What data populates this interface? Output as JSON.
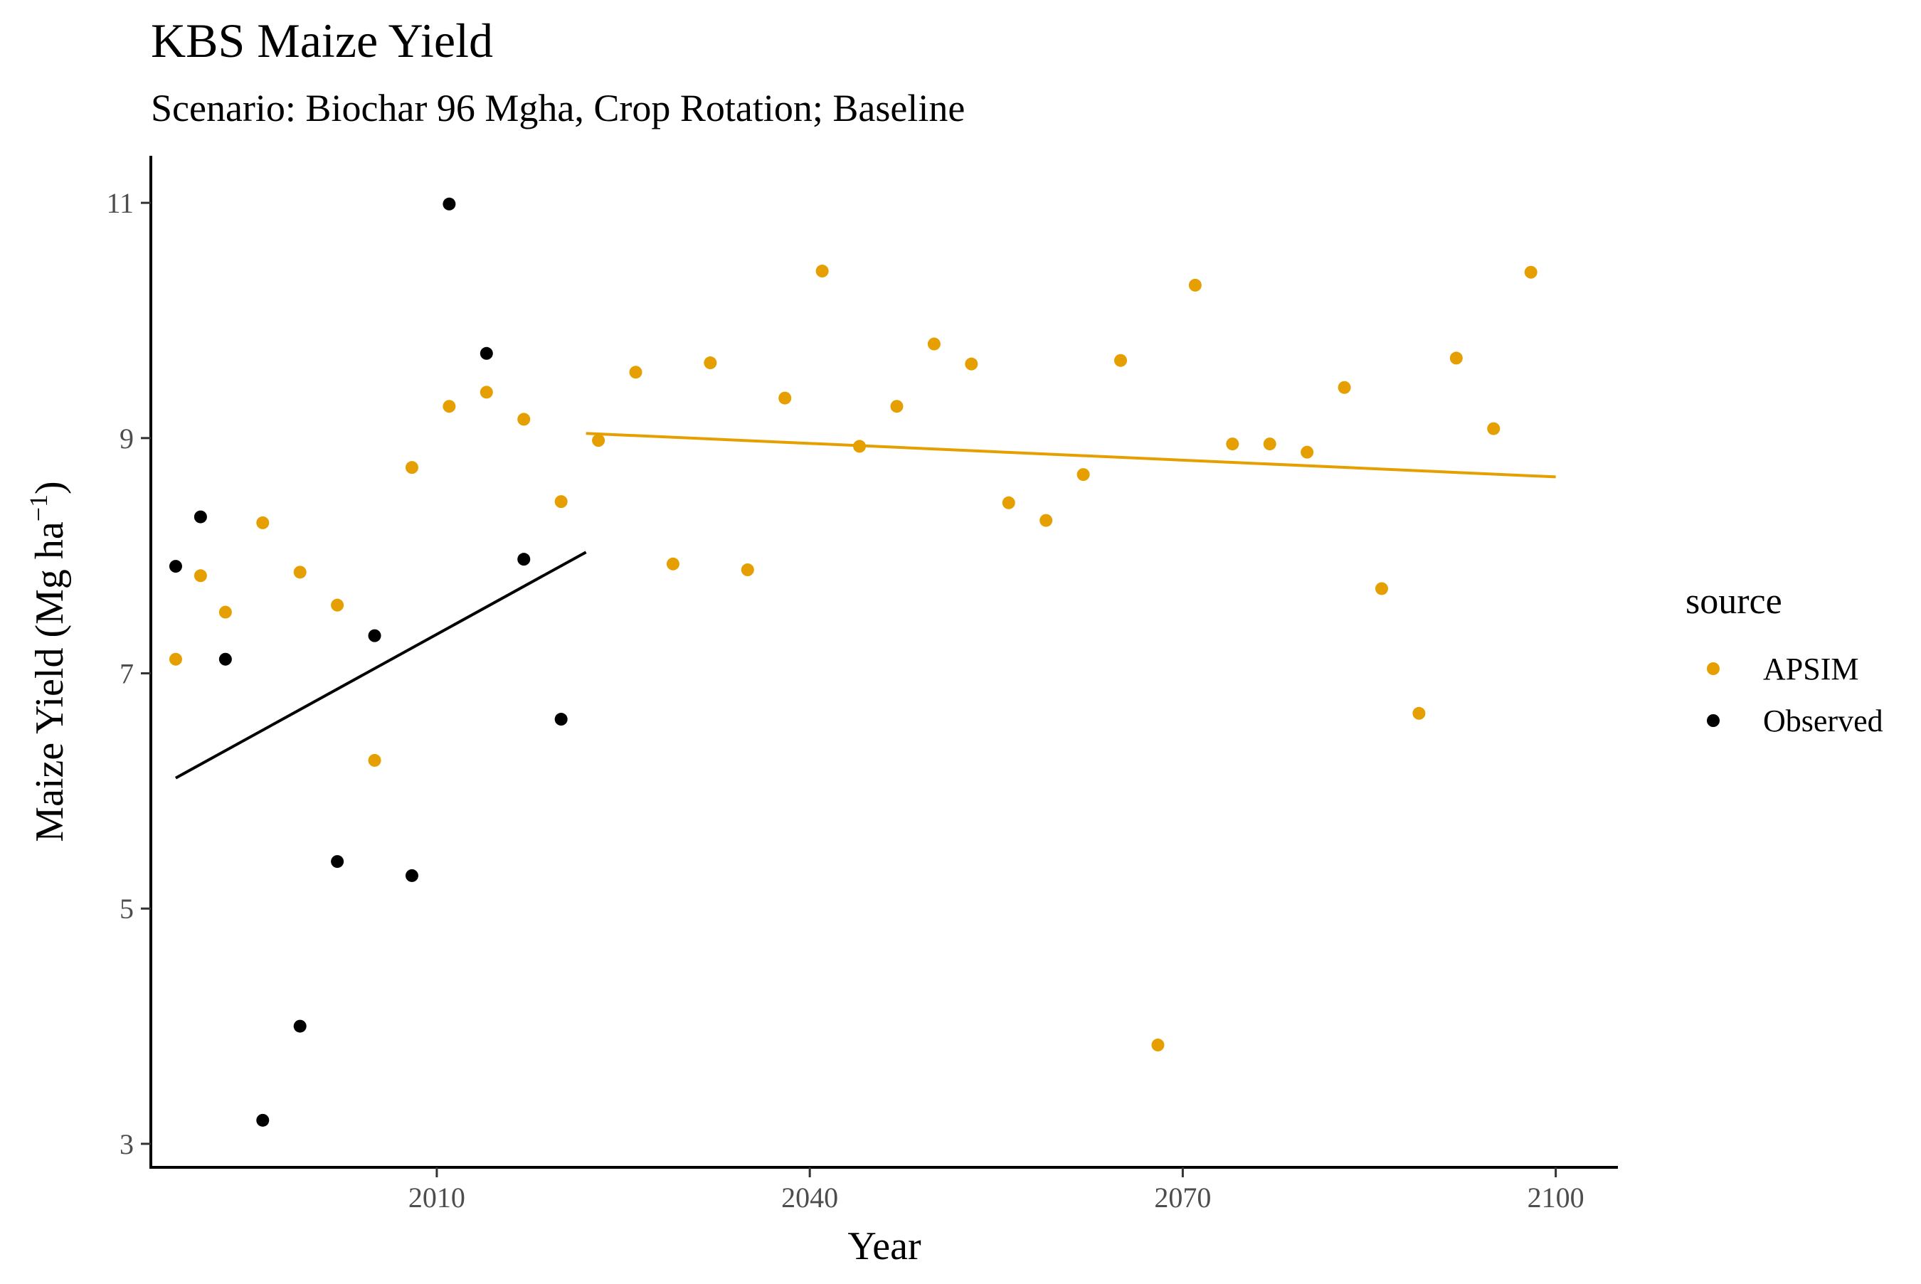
{
  "chart_data": {
    "type": "scatter",
    "title": "KBS Maize Yield",
    "subtitle": "Scenario: Biochar 96 Mgha, Crop Rotation; Baseline",
    "xlabel": "Year",
    "ylabel_main": "Maize Yield (Mg ha",
    "ylabel_sup": "−1",
    "ylabel_close": ")",
    "xlim": [
      1987,
      2105
    ],
    "ylim": [
      2.8,
      11.4
    ],
    "x_ticks": [
      2010,
      2040,
      2070,
      2100
    ],
    "y_ticks": [
      3,
      5,
      7,
      9,
      11
    ],
    "grid": false,
    "legend": {
      "title": "source",
      "position": "right"
    },
    "series": [
      {
        "name": "APSIM",
        "color": "#E69F00",
        "x": [
          1989,
          1991,
          1993,
          1996,
          1999,
          2002,
          2005,
          2008,
          2011,
          2014,
          2017,
          2020,
          2023,
          2026,
          2029,
          2032,
          2035,
          2038,
          2041,
          2044,
          2047,
          2050,
          2053,
          2056,
          2059,
          2062,
          2065,
          2068,
          2071,
          2074,
          2077,
          2080,
          2083,
          2086,
          2089,
          2092,
          2095,
          2098
        ],
        "y": [
          7.12,
          7.83,
          7.52,
          8.28,
          7.86,
          7.58,
          6.26,
          8.75,
          9.27,
          9.39,
          9.16,
          8.46,
          8.98,
          9.56,
          7.93,
          9.64,
          7.88,
          9.34,
          10.42,
          8.93,
          9.27,
          9.8,
          9.63,
          8.45,
          8.3,
          8.69,
          9.66,
          3.84,
          10.3,
          8.95,
          8.95,
          8.88,
          9.43,
          7.72,
          6.66,
          9.68,
          9.08,
          10.41
        ]
      },
      {
        "name": "Observed",
        "color": "#000000",
        "x": [
          1989,
          1991,
          1993,
          1996,
          1999,
          2002,
          2005,
          2008,
          2011,
          2014,
          2017,
          2020
        ],
        "y": [
          7.91,
          8.33,
          7.12,
          3.2,
          4.0,
          5.4,
          7.32,
          5.28,
          10.99,
          9.72,
          7.97,
          6.61
        ]
      }
    ],
    "trendlines": [
      {
        "series": "APSIM",
        "x": [
          2022,
          2100
        ],
        "y": [
          9.04,
          8.67
        ]
      },
      {
        "series": "Observed",
        "x": [
          1989,
          2022
        ],
        "y": [
          6.11,
          8.03
        ]
      }
    ]
  }
}
